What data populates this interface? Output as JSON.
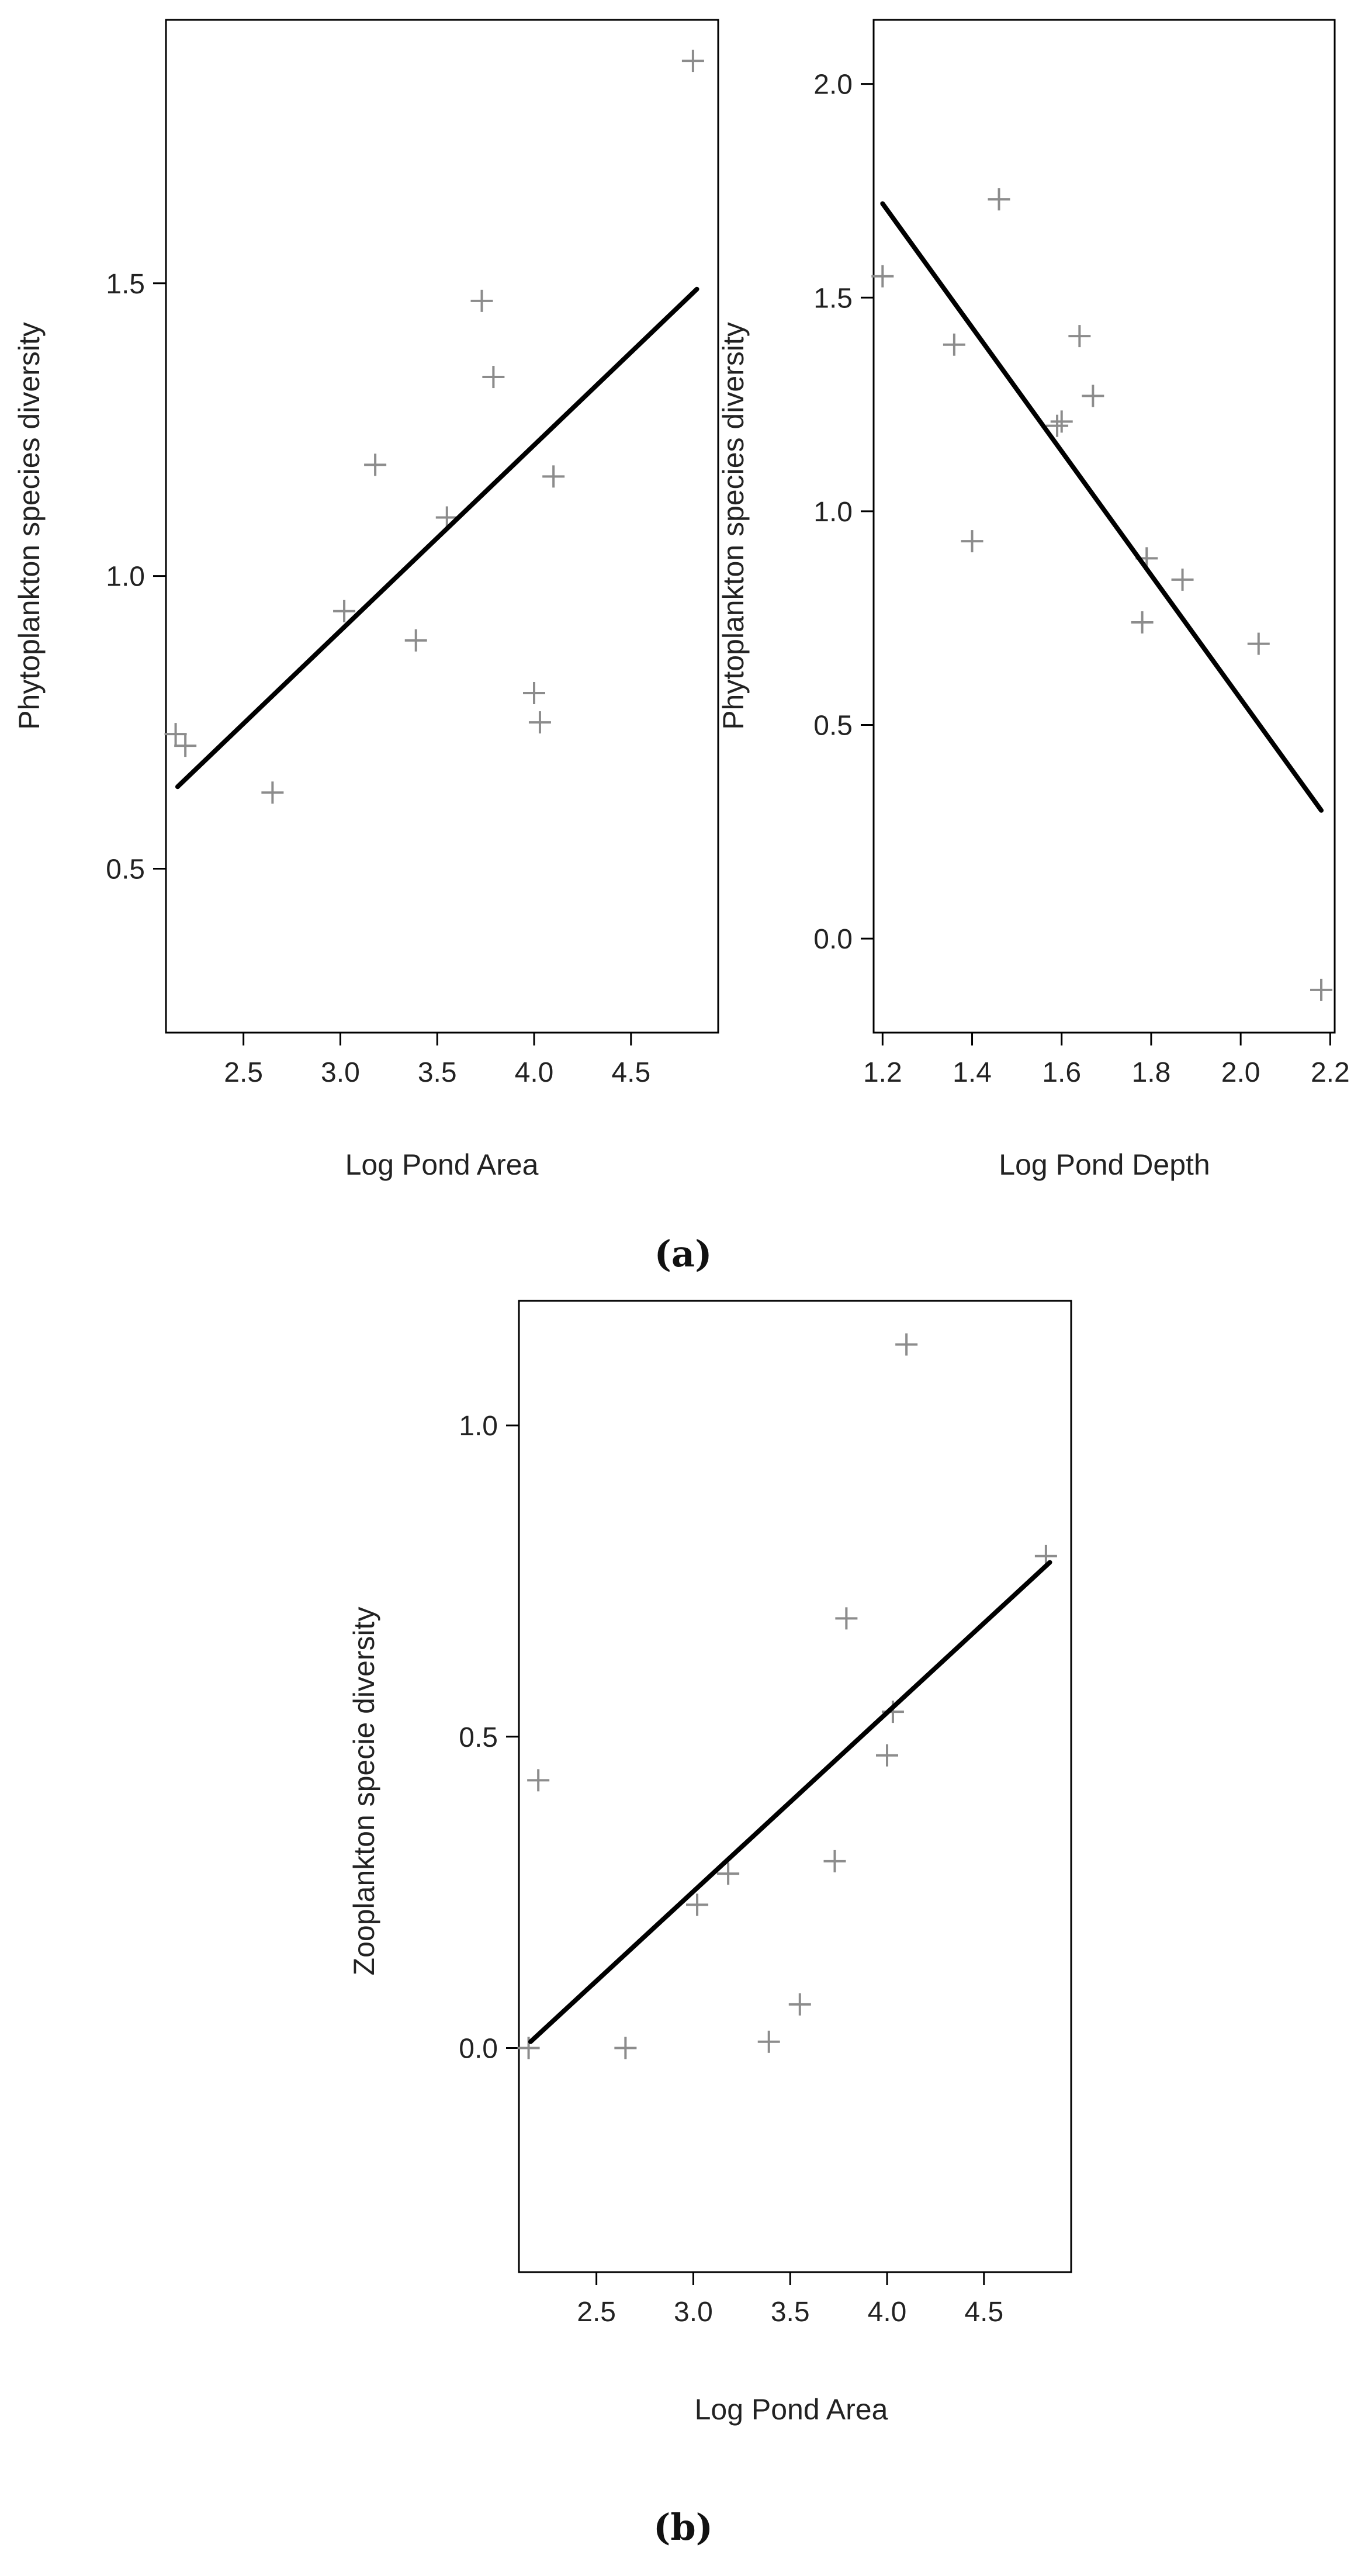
{
  "chart_data": [
    {
      "type": "scatter",
      "xlabel": "Log Pond Area",
      "ylabel": "Phytoplankton species diversity",
      "xlim": [
        2.1,
        4.95
      ],
      "ylim": [
        0.22,
        1.95
      ],
      "xticks": [
        "2.5",
        "3.0",
        "3.5",
        "4.0",
        "4.5"
      ],
      "yticks": [
        "0.5",
        "1.0",
        "1.5"
      ],
      "points": [
        {
          "x": 2.15,
          "y": 0.73
        },
        {
          "x": 2.2,
          "y": 0.71
        },
        {
          "x": 2.65,
          "y": 0.63
        },
        {
          "x": 3.02,
          "y": 0.94
        },
        {
          "x": 3.18,
          "y": 1.19
        },
        {
          "x": 3.39,
          "y": 0.89
        },
        {
          "x": 3.55,
          "y": 1.1
        },
        {
          "x": 3.73,
          "y": 1.47
        },
        {
          "x": 3.79,
          "y": 1.34
        },
        {
          "x": 4.0,
          "y": 0.8
        },
        {
          "x": 4.03,
          "y": 0.75
        },
        {
          "x": 4.1,
          "y": 1.17
        },
        {
          "x": 4.82,
          "y": 1.88
        }
      ],
      "fit_line": {
        "x": [
          2.16,
          4.84
        ],
        "y": [
          0.64,
          1.49
        ]
      },
      "point_color": "#8c8c8c",
      "line_color": "#000000"
    },
    {
      "type": "scatter",
      "xlabel": "Log Pond Depth",
      "ylabel": "Phytoplankton species diversity",
      "xlim": [
        1.18,
        2.21
      ],
      "ylim": [
        -0.22,
        2.15
      ],
      "xticks": [
        "1.2",
        "1.4",
        "1.6",
        "1.8",
        "2.0",
        "2.2"
      ],
      "yticks": [
        "0.0",
        "0.5",
        "1.0",
        "1.5",
        "2.0"
      ],
      "points": [
        {
          "x": 1.2,
          "y": 1.55
        },
        {
          "x": 1.36,
          "y": 1.39
        },
        {
          "x": 1.4,
          "y": 0.93
        },
        {
          "x": 1.46,
          "y": 1.73
        },
        {
          "x": 1.59,
          "y": 1.2
        },
        {
          "x": 1.6,
          "y": 1.21
        },
        {
          "x": 1.64,
          "y": 1.41
        },
        {
          "x": 1.67,
          "y": 1.27
        },
        {
          "x": 1.78,
          "y": 0.74
        },
        {
          "x": 1.79,
          "y": 0.89
        },
        {
          "x": 1.87,
          "y": 0.84
        },
        {
          "x": 2.04,
          "y": 0.69
        },
        {
          "x": 2.18,
          "y": -0.12
        }
      ],
      "fit_line": {
        "x": [
          1.2,
          2.18
        ],
        "y": [
          1.72,
          0.3
        ]
      },
      "point_color": "#8c8c8c",
      "line_color": "#000000"
    },
    {
      "type": "scatter",
      "xlabel": "Log Pond Area",
      "ylabel": "Zooplankton specie diversity",
      "xlim": [
        2.1,
        4.95
      ],
      "ylim": [
        -0.36,
        1.2
      ],
      "xticks": [
        "2.5",
        "3.0",
        "3.5",
        "4.0",
        "4.5"
      ],
      "yticks": [
        "0.0",
        "0.5",
        "1.0"
      ],
      "points": [
        {
          "x": 2.15,
          "y": 0.0
        },
        {
          "x": 2.2,
          "y": 0.43
        },
        {
          "x": 2.65,
          "y": 0.0
        },
        {
          "x": 3.02,
          "y": 0.23
        },
        {
          "x": 3.18,
          "y": 0.28
        },
        {
          "x": 3.39,
          "y": 0.01
        },
        {
          "x": 3.55,
          "y": 0.07
        },
        {
          "x": 3.73,
          "y": 0.3
        },
        {
          "x": 3.79,
          "y": 0.69
        },
        {
          "x": 4.0,
          "y": 0.47
        },
        {
          "x": 4.03,
          "y": 0.54
        },
        {
          "x": 4.1,
          "y": 1.13
        },
        {
          "x": 4.82,
          "y": 0.79
        }
      ],
      "fit_line": {
        "x": [
          2.16,
          4.84
        ],
        "y": [
          0.01,
          0.78
        ]
      },
      "point_color": "#8c8c8c",
      "line_color": "#000000"
    }
  ],
  "captions": {
    "a": "(a)",
    "b": "(b)"
  }
}
